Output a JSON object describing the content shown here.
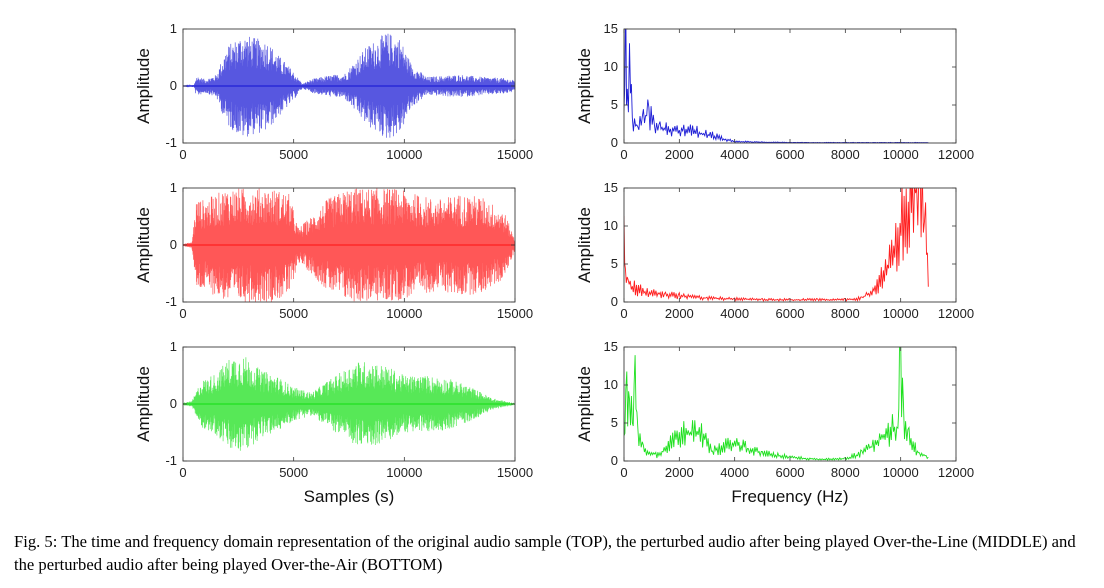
{
  "caption": "Fig. 5: The time and frequency domain representation of the original audio sample (TOP), the perturbed audio after being played Over-the-Line (MIDDLE) and the perturbed audio after being played Over-the-Air (BOTTOM)",
  "chart_data": [
    {
      "id": "time-top",
      "type": "line",
      "domain": "time",
      "color": "#1f1fd6",
      "title": "",
      "xlabel": "",
      "ylabel": "Amplitude",
      "xlim": [
        0,
        15000
      ],
      "ylim": [
        -1,
        1
      ],
      "xticks": [
        0,
        5000,
        10000,
        15000
      ],
      "yticks": [
        -1,
        0,
        1
      ],
      "envelope": [
        [
          0,
          0.0
        ],
        [
          500,
          0.02
        ],
        [
          600,
          0.18
        ],
        [
          1000,
          0.12
        ],
        [
          1500,
          0.2
        ],
        [
          2000,
          0.7
        ],
        [
          2700,
          0.92
        ],
        [
          3200,
          0.85
        ],
        [
          3800,
          0.8
        ],
        [
          4300,
          0.55
        ],
        [
          4900,
          0.3
        ],
        [
          5400,
          0.04
        ],
        [
          5800,
          0.12
        ],
        [
          6500,
          0.18
        ],
        [
          7300,
          0.22
        ],
        [
          8300,
          0.7
        ],
        [
          9200,
          0.95
        ],
        [
          9800,
          0.85
        ],
        [
          10300,
          0.4
        ],
        [
          11000,
          0.16
        ],
        [
          12500,
          0.2
        ],
        [
          13500,
          0.16
        ],
        [
          14500,
          0.14
        ],
        [
          15000,
          0.1
        ]
      ]
    },
    {
      "id": "freq-top",
      "type": "line",
      "domain": "frequency",
      "color": "#1f1fd6",
      "title": "",
      "xlabel": "",
      "ylabel": "Amplitude",
      "xlim": [
        0,
        12000
      ],
      "ylim": [
        0,
        15
      ],
      "xticks": [
        0,
        2000,
        4000,
        6000,
        8000,
        10000,
        12000
      ],
      "yticks": [
        0,
        5,
        10,
        15
      ],
      "x": [
        0,
        60,
        120,
        200,
        300,
        500,
        700,
        900,
        1100,
        1300,
        1600,
        2000,
        2400,
        2800,
        3200,
        3600,
        4000,
        5000,
        7000,
        9000,
        11000
      ],
      "y": [
        3,
        15,
        6,
        11,
        3,
        2,
        3,
        4,
        2.2,
        2,
        1.8,
        1.5,
        2,
        1.2,
        1,
        0.5,
        0.2,
        0.1,
        0.05,
        0.05,
        0.05
      ]
    },
    {
      "id": "time-mid",
      "type": "line",
      "domain": "time",
      "color": "#ff1f1f",
      "title": "",
      "xlabel": "",
      "ylabel": "Amplitude",
      "xlim": [
        0,
        15000
      ],
      "ylim": [
        -1,
        1
      ],
      "xticks": [
        0,
        5000,
        10000,
        15000
      ],
      "yticks": [
        -1,
        0,
        1
      ],
      "envelope": [
        [
          0,
          0.02
        ],
        [
          400,
          0.05
        ],
        [
          600,
          0.8
        ],
        [
          1000,
          0.8
        ],
        [
          1500,
          0.9
        ],
        [
          2000,
          1.0
        ],
        [
          3000,
          1.0
        ],
        [
          4000,
          1.0
        ],
        [
          4800,
          0.9
        ],
        [
          5200,
          0.3
        ],
        [
          5800,
          0.5
        ],
        [
          6500,
          0.8
        ],
        [
          7500,
          1.0
        ],
        [
          8500,
          1.0
        ],
        [
          9500,
          1.0
        ],
        [
          10500,
          0.9
        ],
        [
          11500,
          0.8
        ],
        [
          12500,
          0.9
        ],
        [
          13500,
          0.85
        ],
        [
          14500,
          0.6
        ],
        [
          15000,
          0.1
        ]
      ]
    },
    {
      "id": "freq-mid",
      "type": "line",
      "domain": "frequency",
      "color": "#ff1f1f",
      "title": "",
      "xlabel": "",
      "ylabel": "Amplitude",
      "xlim": [
        0,
        12000
      ],
      "ylim": [
        0,
        15
      ],
      "xticks": [
        0,
        2000,
        4000,
        6000,
        8000,
        10000,
        12000
      ],
      "yticks": [
        0,
        5,
        10,
        15
      ],
      "x": [
        0,
        50,
        150,
        300,
        600,
        1000,
        1500,
        2000,
        3000,
        4000,
        5000,
        6000,
        7000,
        8000,
        8600,
        9000,
        9300,
        9600,
        9900,
        10200,
        10500,
        10700,
        10900,
        11000
      ],
      "y": [
        9.5,
        3,
        2.5,
        2,
        1.5,
        1.2,
        1,
        0.8,
        0.5,
        0.4,
        0.3,
        0.3,
        0.3,
        0.3,
        0.5,
        1.5,
        3,
        5,
        9,
        12,
        15,
        14,
        9,
        2
      ]
    },
    {
      "id": "time-bot",
      "type": "line",
      "domain": "time",
      "color": "#1fe01f",
      "title": "",
      "xlabel": "Samples (s)",
      "ylabel": "Amplitude",
      "xlim": [
        0,
        15000
      ],
      "ylim": [
        -1,
        1
      ],
      "xticks": [
        0,
        5000,
        10000,
        15000
      ],
      "yticks": [
        -1,
        0,
        1
      ],
      "envelope": [
        [
          0,
          0.02
        ],
        [
          400,
          0.05
        ],
        [
          800,
          0.4
        ],
        [
          1500,
          0.55
        ],
        [
          2200,
          0.85
        ],
        [
          2800,
          0.85
        ],
        [
          3500,
          0.6
        ],
        [
          4200,
          0.5
        ],
        [
          5000,
          0.3
        ],
        [
          5800,
          0.2
        ],
        [
          6500,
          0.4
        ],
        [
          7300,
          0.6
        ],
        [
          7800,
          0.75
        ],
        [
          8500,
          0.75
        ],
        [
          9300,
          0.65
        ],
        [
          10000,
          0.5
        ],
        [
          11000,
          0.5
        ],
        [
          12000,
          0.45
        ],
        [
          13000,
          0.3
        ],
        [
          14000,
          0.1
        ],
        [
          15000,
          0.01
        ]
      ]
    },
    {
      "id": "freq-bot",
      "type": "line",
      "domain": "frequency",
      "color": "#1fe01f",
      "title": "",
      "xlabel": "Frequency (Hz)",
      "ylabel": "Amplitude",
      "xlim": [
        0,
        12000
      ],
      "ylim": [
        0,
        15
      ],
      "xticks": [
        0,
        2000,
        4000,
        6000,
        8000,
        10000,
        12000
      ],
      "yticks": [
        0,
        5,
        10,
        15
      ],
      "x": [
        0,
        100,
        200,
        300,
        400,
        500,
        700,
        1000,
        1300,
        1600,
        2000,
        2400,
        2800,
        3200,
        3600,
        4000,
        4500,
        5000,
        6000,
        7000,
        8000,
        8600,
        9000,
        9400,
        9700,
        9900,
        10000,
        10100,
        10300,
        10600,
        11000
      ],
      "y": [
        3,
        8.5,
        7,
        5,
        10.5,
        3,
        1.5,
        1,
        0.8,
        2,
        3.5,
        3.5,
        3.5,
        1.2,
        1.8,
        2.5,
        1.5,
        1,
        0.5,
        0.2,
        0.3,
        1,
        2,
        3.5,
        4,
        3.8,
        15,
        6,
        3,
        1.2,
        0.5
      ]
    }
  ]
}
